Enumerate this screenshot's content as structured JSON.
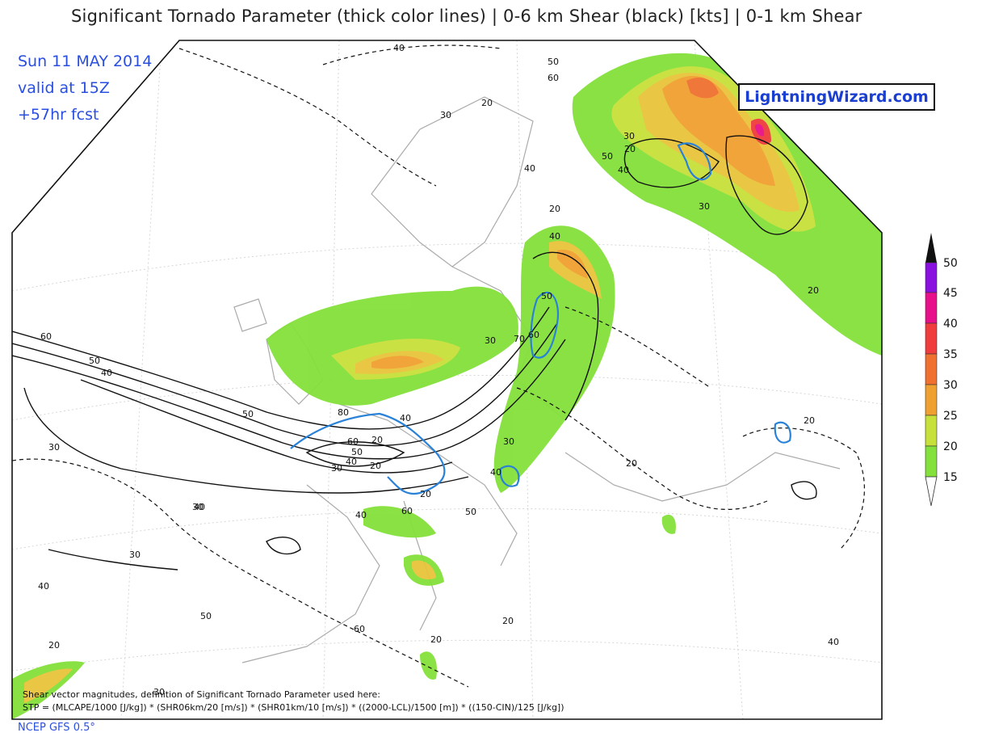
{
  "title": "Significant Tornado Parameter (thick color lines) | 0-6 km Shear (black) [kts] | 0-1 km Shear",
  "meta": {
    "date": "Sun 11 MAY 2014",
    "valid": "valid at 15Z",
    "forecast": "+57hr fcst"
  },
  "brand": "LightningWizard.com",
  "footer": "NCEP GFS 0.5°",
  "note_line1": "Shear vector magnitudes, definition of Significant Tornado Parameter used here:",
  "note_line2": "STP = (MLCAPE/1000 [J/kg]) * (SHR06km/20 [m/s]) * (SHR01km/10 [m/s]) * ((2000-LCL)/1500 [m]) * ((150-CIN)/125 [J/kg])",
  "colors": {
    "c15": "#84e03a",
    "c20": "#c8e03a",
    "c25": "#e8c43a",
    "c30": "#f0a030",
    "c35": "#f07030",
    "c40": "#f03c3c",
    "c45": "#e8108a",
    "c50": "#8a10e0",
    "top": "#111111",
    "stp_line": "#2a82d8",
    "meta_text": "#2a4fe0"
  },
  "legend": {
    "levels": [
      "50",
      "45",
      "40",
      "35",
      "30",
      "25",
      "20",
      "15"
    ]
  },
  "contour_labels": [
    "40",
    "50",
    "60",
    "30",
    "20",
    "40",
    "30",
    "20",
    "50",
    "40",
    "30",
    "20",
    "40",
    "50",
    "60",
    "70",
    "80",
    "40",
    "50",
    "60",
    "50",
    "40",
    "30",
    "20",
    "60",
    "50",
    "40",
    "30",
    "20",
    "20",
    "40",
    "60",
    "50",
    "40",
    "30",
    "40",
    "50",
    "60",
    "20",
    "30",
    "20",
    "20",
    "30",
    "40",
    "20",
    "20",
    "30",
    "40",
    "30",
    "20"
  ]
}
